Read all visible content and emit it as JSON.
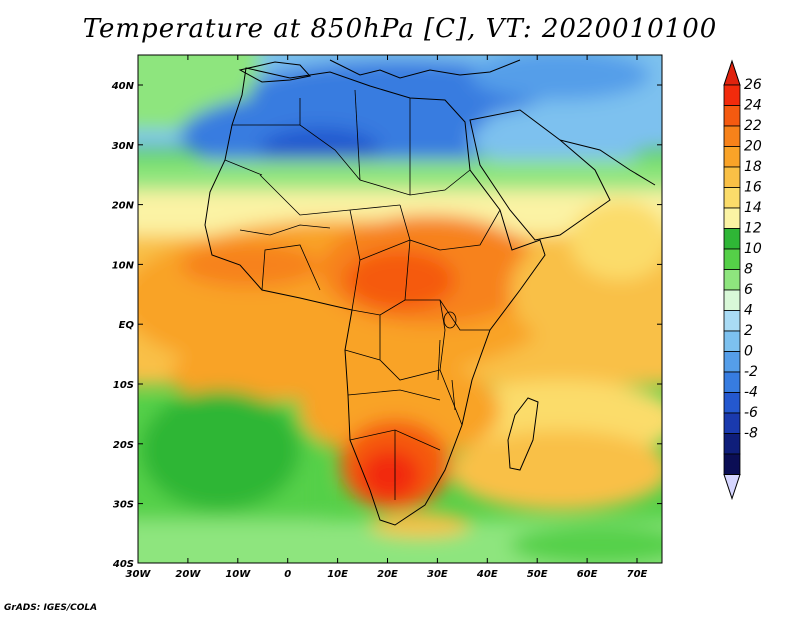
{
  "title": "Temperature at 850hPa [C], VT: 2020010100",
  "credit": "GrADS: IGES/COLA",
  "axes": {
    "lat_labels": [
      "40N",
      "30N",
      "20N",
      "10N",
      "EQ",
      "10S",
      "20S",
      "30S",
      "40S"
    ],
    "lon_labels": [
      "30W",
      "20W",
      "10W",
      "0",
      "10E",
      "20E",
      "30E",
      "40E",
      "50E",
      "60E",
      "70E"
    ]
  },
  "colorbar": {
    "labels": [
      "26",
      "24",
      "22",
      "20",
      "18",
      "16",
      "14",
      "12",
      "10",
      "8",
      "6",
      "4",
      "2",
      "0",
      "-2",
      "-4",
      "-6",
      "-8"
    ],
    "colors": [
      "#f22b0c",
      "#f55a10",
      "#f7821a",
      "#f9a328",
      "#f9c046",
      "#fbdc6a",
      "#fbf3a4",
      "#2fb636",
      "#55d048",
      "#8ee57e",
      "#d9f8d8",
      "#a9dbf5",
      "#7dc1ef",
      "#559ee9",
      "#377ce0",
      "#2458cf",
      "#1a3aae",
      "#0f1e7a",
      "#0b0e55"
    ],
    "over_color": "#e0230e",
    "under_color": "#d6d6ff"
  },
  "map": {
    "ocean_color": "#55d048"
  }
}
